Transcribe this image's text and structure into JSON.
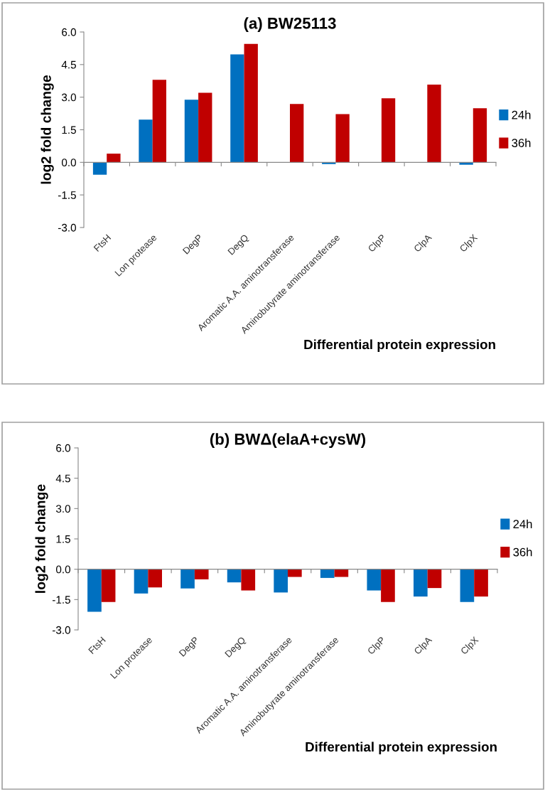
{
  "chart_data": [
    {
      "type": "bar",
      "title": "(a) BW25113",
      "xlabel": "Differential protein expression",
      "ylabel": "log2 fold change",
      "categories": [
        "FtsH",
        "Lon protease",
        "DegP",
        "DegQ",
        "Aromatic A.A. aminotransferase",
        "Aminobutyrate aminotransferase",
        "ClpP",
        "ClpA",
        "ClpX"
      ],
      "series": [
        {
          "name": "24h",
          "color": "#0070c0",
          "values": [
            -0.57,
            1.97,
            2.88,
            4.97,
            null,
            -0.08,
            null,
            null,
            -0.11
          ]
        },
        {
          "name": "36h",
          "color": "#c00000",
          "values": [
            0.4,
            3.8,
            3.2,
            5.45,
            2.69,
            2.22,
            2.95,
            3.58,
            2.49
          ]
        }
      ],
      "ylim": [
        -3.0,
        6.0
      ],
      "yticks": [
        {
          "value": -3,
          "label": "-3.0"
        },
        {
          "value": -1.5,
          "label": "-1.5"
        },
        {
          "value": 0,
          "label": "0.0"
        },
        {
          "value": 1.5,
          "label": "1.5"
        },
        {
          "value": 3,
          "label": "3.0"
        },
        {
          "value": 4.5,
          "label": "4.5"
        },
        {
          "value": 6,
          "label": "6.0"
        }
      ],
      "legend": "right"
    },
    {
      "type": "bar",
      "title": "(b) BWΔ(elaA+cysW)",
      "xlabel": "Differential protein expression",
      "ylabel": "log2 fold change",
      "categories": [
        "FtsH",
        "Lon protease",
        "DegP",
        "DegQ",
        "Aromatic A.A. aminotransferase",
        "Aminobutyrate aminotransferase",
        "ClpP",
        "ClpA",
        "ClpX"
      ],
      "series": [
        {
          "name": "24h",
          "color": "#0070c0",
          "values": [
            -2.1,
            -1.2,
            -0.95,
            -0.65,
            -1.15,
            -0.43,
            -1.05,
            -1.35,
            -1.62
          ]
        },
        {
          "name": "36h",
          "color": "#c00000",
          "values": [
            -1.62,
            -0.9,
            -0.5,
            -1.05,
            -0.38,
            -0.38,
            -1.62,
            -0.93,
            -1.35
          ]
        }
      ],
      "ylim": [
        -3.0,
        6.0
      ],
      "yticks": [
        {
          "value": -3,
          "label": "-3.0"
        },
        {
          "value": -1.5,
          "label": "-1.5"
        },
        {
          "value": 0,
          "label": "0.0"
        },
        {
          "value": 1.5,
          "label": "1.5"
        },
        {
          "value": 3,
          "label": "3.0"
        },
        {
          "value": 4.5,
          "label": "4.5"
        },
        {
          "value": 6,
          "label": "6.0"
        }
      ],
      "legend": "right"
    }
  ]
}
